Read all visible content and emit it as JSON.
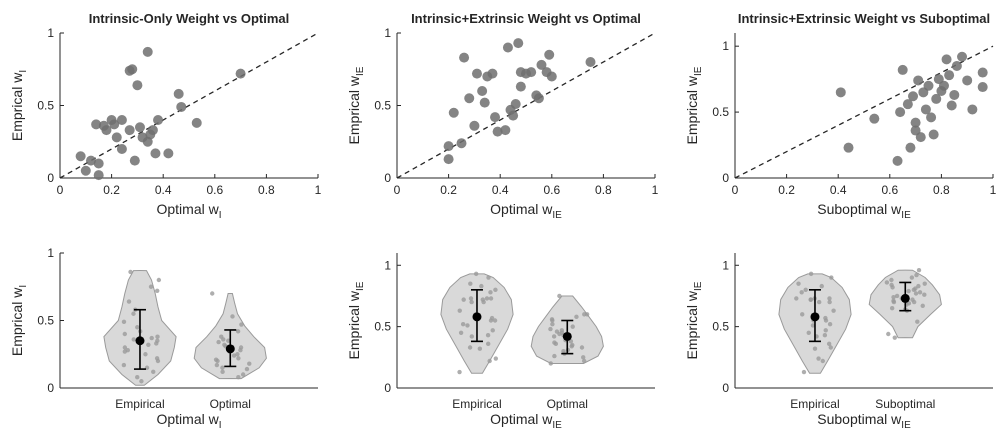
{
  "colors": {
    "point": "#6f6f6f",
    "violin_fill": "#d9d9d9",
    "violin_stroke": "#9a9a9a",
    "jitter": "#9a9a9a",
    "mean": "#000000",
    "axis": "#262626",
    "diagonal": "#262626"
  },
  "chart_data": [
    {
      "type": "scatter",
      "title": "Intrinsic-Only Weight vs Optimal",
      "xlabel": "Optimal w",
      "xlabel_sub": "I",
      "ylabel": "Emprical w",
      "ylabel_sub": "I",
      "xlim": [
        0,
        1
      ],
      "ylim": [
        0,
        1
      ],
      "xticks": [
        0,
        0.2,
        0.4,
        0.6,
        0.8,
        1
      ],
      "xticklabels": [
        "0",
        "0.2",
        "0.4",
        "0.6",
        "0.8",
        "1"
      ],
      "yticks": [
        0,
        0.5,
        1
      ],
      "yticklabels": [
        "0",
        "0.5",
        "1"
      ],
      "diagonal": true,
      "points": [
        [
          0.08,
          0.15
        ],
        [
          0.1,
          0.05
        ],
        [
          0.12,
          0.12
        ],
        [
          0.14,
          0.37
        ],
        [
          0.15,
          0.02
        ],
        [
          0.15,
          0.1
        ],
        [
          0.17,
          0.36
        ],
        [
          0.18,
          0.33
        ],
        [
          0.2,
          0.4
        ],
        [
          0.21,
          0.37
        ],
        [
          0.22,
          0.28
        ],
        [
          0.24,
          0.2
        ],
        [
          0.24,
          0.4
        ],
        [
          0.27,
          0.33
        ],
        [
          0.27,
          0.74
        ],
        [
          0.28,
          0.75
        ],
        [
          0.29,
          0.12
        ],
        [
          0.3,
          0.64
        ],
        [
          0.31,
          0.35
        ],
        [
          0.32,
          0.28
        ],
        [
          0.34,
          0.25
        ],
        [
          0.34,
          0.87
        ],
        [
          0.35,
          0.3
        ],
        [
          0.36,
          0.33
        ],
        [
          0.37,
          0.17
        ],
        [
          0.38,
          0.4
        ],
        [
          0.42,
          0.17
        ],
        [
          0.46,
          0.58
        ],
        [
          0.47,
          0.49
        ],
        [
          0.53,
          0.38
        ],
        [
          0.7,
          0.72
        ]
      ]
    },
    {
      "type": "scatter",
      "title": "Intrinsic+Extrinsic Weight vs Optimal",
      "xlabel": "Optimal w",
      "xlabel_sub": "IE",
      "ylabel": "Emprical w",
      "ylabel_sub": "IE",
      "xlim": [
        0,
        1
      ],
      "ylim": [
        0,
        1
      ],
      "xticks": [
        0,
        0.2,
        0.4,
        0.6,
        0.8,
        1
      ],
      "xticklabels": [
        "0",
        "0.2",
        "0.4",
        "0.6",
        "0.8",
        "1"
      ],
      "yticks": [
        0,
        0.5,
        1
      ],
      "yticklabels": [
        "0",
        "0.5",
        "1"
      ],
      "diagonal": true,
      "points": [
        [
          0.2,
          0.13
        ],
        [
          0.2,
          0.22
        ],
        [
          0.22,
          0.45
        ],
        [
          0.25,
          0.24
        ],
        [
          0.26,
          0.83
        ],
        [
          0.28,
          0.55
        ],
        [
          0.3,
          0.36
        ],
        [
          0.31,
          0.72
        ],
        [
          0.33,
          0.6
        ],
        [
          0.34,
          0.52
        ],
        [
          0.35,
          0.7
        ],
        [
          0.37,
          0.72
        ],
        [
          0.38,
          0.42
        ],
        [
          0.39,
          0.32
        ],
        [
          0.42,
          0.33
        ],
        [
          0.43,
          0.9
        ],
        [
          0.44,
          0.47
        ],
        [
          0.45,
          0.43
        ],
        [
          0.46,
          0.51
        ],
        [
          0.47,
          0.93
        ],
        [
          0.48,
          0.63
        ],
        [
          0.48,
          0.73
        ],
        [
          0.5,
          0.72
        ],
        [
          0.52,
          0.73
        ],
        [
          0.54,
          0.57
        ],
        [
          0.55,
          0.55
        ],
        [
          0.56,
          0.78
        ],
        [
          0.58,
          0.73
        ],
        [
          0.59,
          0.85
        ],
        [
          0.6,
          0.7
        ],
        [
          0.75,
          0.8
        ]
      ]
    },
    {
      "type": "scatter",
      "title": "Intrinsic+Extrinsic Weight vs Suboptimal",
      "xlabel": "Suboptimal w",
      "xlabel_sub": "IE",
      "ylabel": "Emprical w",
      "ylabel_sub": "IE",
      "xlim": [
        0,
        1
      ],
      "ylim": [
        0,
        1.1
      ],
      "xticks": [
        0,
        0.2,
        0.4,
        0.6,
        0.8,
        1
      ],
      "xticklabels": [
        "0",
        "0.2",
        "0.4",
        "0.6",
        "0.8",
        "1"
      ],
      "yticks": [
        0,
        0.5,
        1
      ],
      "yticklabels": [
        "0",
        "0.5",
        "1"
      ],
      "diagonal": true,
      "points": [
        [
          0.41,
          0.65
        ],
        [
          0.44,
          0.23
        ],
        [
          0.54,
          0.45
        ],
        [
          0.63,
          0.13
        ],
        [
          0.64,
          0.5
        ],
        [
          0.65,
          0.82
        ],
        [
          0.67,
          0.56
        ],
        [
          0.68,
          0.23
        ],
        [
          0.69,
          0.62
        ],
        [
          0.7,
          0.36
        ],
        [
          0.7,
          0.42
        ],
        [
          0.71,
          0.74
        ],
        [
          0.72,
          0.31
        ],
        [
          0.73,
          0.65
        ],
        [
          0.74,
          0.52
        ],
        [
          0.75,
          0.7
        ],
        [
          0.76,
          0.46
        ],
        [
          0.77,
          0.33
        ],
        [
          0.78,
          0.6
        ],
        [
          0.79,
          0.75
        ],
        [
          0.8,
          0.66
        ],
        [
          0.81,
          0.7
        ],
        [
          0.82,
          0.9
        ],
        [
          0.83,
          0.78
        ],
        [
          0.84,
          0.55
        ],
        [
          0.85,
          0.63
        ],
        [
          0.86,
          0.85
        ],
        [
          0.88,
          0.92
        ],
        [
          0.9,
          0.74
        ],
        [
          0.92,
          0.52
        ],
        [
          0.96,
          0.8
        ],
        [
          0.96,
          0.69
        ]
      ]
    },
    {
      "type": "violin",
      "xlabel": "Optimal w",
      "xlabel_sub": "I",
      "ylabel": "Emprical w",
      "ylabel_sub": "I",
      "ylim": [
        0,
        1
      ],
      "yticks": [
        0,
        0.5,
        1
      ],
      "yticklabels": [
        "0",
        "0.5",
        "1"
      ],
      "categories": [
        "Empirical",
        "Optimal"
      ],
      "groups": [
        {
          "name": "Empirical",
          "mean": 0.35,
          "low": 0.14,
          "high": 0.58,
          "min": 0.02,
          "max": 0.87,
          "profile": [
            [
              0.02,
              0.12
            ],
            [
              0.1,
              0.5
            ],
            [
              0.2,
              0.85
            ],
            [
              0.3,
              0.95
            ],
            [
              0.38,
              1.0
            ],
            [
              0.5,
              0.6
            ],
            [
              0.6,
              0.5
            ],
            [
              0.7,
              0.42
            ],
            [
              0.8,
              0.32
            ],
            [
              0.87,
              0.18
            ]
          ],
          "values": [
            0.05,
            0.08,
            0.12,
            0.15,
            0.17,
            0.2,
            0.22,
            0.25,
            0.27,
            0.28,
            0.3,
            0.32,
            0.33,
            0.35,
            0.36,
            0.37,
            0.38,
            0.4,
            0.42,
            0.45,
            0.49,
            0.55,
            0.58,
            0.64,
            0.72,
            0.75,
            0.8,
            0.86
          ]
        },
        {
          "name": "Optimal",
          "mean": 0.29,
          "low": 0.16,
          "high": 0.43,
          "min": 0.07,
          "max": 0.7,
          "profile": [
            [
              0.07,
              0.3
            ],
            [
              0.15,
              0.8
            ],
            [
              0.22,
              1.0
            ],
            [
              0.3,
              0.95
            ],
            [
              0.38,
              0.65
            ],
            [
              0.46,
              0.4
            ],
            [
              0.55,
              0.2
            ],
            [
              0.63,
              0.12
            ],
            [
              0.7,
              0.06
            ]
          ],
          "values": [
            0.08,
            0.1,
            0.12,
            0.14,
            0.15,
            0.17,
            0.18,
            0.2,
            0.21,
            0.22,
            0.24,
            0.25,
            0.27,
            0.28,
            0.3,
            0.31,
            0.32,
            0.34,
            0.35,
            0.36,
            0.38,
            0.42,
            0.47,
            0.53,
            0.7
          ]
        }
      ]
    },
    {
      "type": "violin",
      "xlabel": "Optimal w",
      "xlabel_sub": "IE",
      "ylabel": "Emprical w",
      "ylabel_sub": "IE",
      "ylim": [
        0,
        1.1
      ],
      "yticks": [
        0,
        0.5,
        1
      ],
      "yticklabels": [
        "0",
        "0.5",
        "1"
      ],
      "categories": [
        "Empirical",
        "Optimal"
      ],
      "groups": [
        {
          "name": "Empirical",
          "mean": 0.58,
          "low": 0.38,
          "high": 0.8,
          "min": 0.12,
          "max": 0.93,
          "profile": [
            [
              0.12,
              0.15
            ],
            [
              0.22,
              0.35
            ],
            [
              0.35,
              0.6
            ],
            [
              0.48,
              0.85
            ],
            [
              0.6,
              1.0
            ],
            [
              0.72,
              0.95
            ],
            [
              0.82,
              0.75
            ],
            [
              0.9,
              0.45
            ],
            [
              0.93,
              0.2
            ]
          ],
          "values": [
            0.13,
            0.22,
            0.24,
            0.32,
            0.33,
            0.36,
            0.42,
            0.43,
            0.45,
            0.47,
            0.51,
            0.52,
            0.55,
            0.55,
            0.57,
            0.6,
            0.63,
            0.7,
            0.7,
            0.72,
            0.72,
            0.73,
            0.73,
            0.73,
            0.78,
            0.8,
            0.83,
            0.85,
            0.9,
            0.93
          ]
        },
        {
          "name": "Optimal",
          "mean": 0.42,
          "low": 0.28,
          "high": 0.55,
          "min": 0.2,
          "max": 0.75,
          "profile": [
            [
              0.2,
              0.45
            ],
            [
              0.26,
              0.85
            ],
            [
              0.34,
              1.0
            ],
            [
              0.42,
              0.95
            ],
            [
              0.5,
              0.8
            ],
            [
              0.58,
              0.6
            ],
            [
              0.66,
              0.4
            ],
            [
              0.75,
              0.15
            ]
          ],
          "values": [
            0.2,
            0.22,
            0.25,
            0.26,
            0.28,
            0.3,
            0.31,
            0.33,
            0.34,
            0.35,
            0.36,
            0.37,
            0.38,
            0.39,
            0.42,
            0.43,
            0.44,
            0.45,
            0.46,
            0.47,
            0.48,
            0.5,
            0.52,
            0.55,
            0.56,
            0.58,
            0.6,
            0.6,
            0.75
          ]
        }
      ]
    },
    {
      "type": "violin",
      "xlabel": "Suboptimal w",
      "xlabel_sub": "IE",
      "ylabel": "Emprical w",
      "ylabel_sub": "IE",
      "ylim": [
        0,
        1.1
      ],
      "yticks": [
        0,
        0.5,
        1
      ],
      "yticklabels": [
        "0",
        "0.5",
        "1"
      ],
      "categories": [
        "Empirical",
        "Suboptimal"
      ],
      "groups": [
        {
          "name": "Empirical",
          "mean": 0.58,
          "low": 0.38,
          "high": 0.8,
          "min": 0.12,
          "max": 0.93,
          "profile": [
            [
              0.12,
              0.15
            ],
            [
              0.22,
              0.35
            ],
            [
              0.35,
              0.6
            ],
            [
              0.48,
              0.85
            ],
            [
              0.6,
              1.0
            ],
            [
              0.72,
              0.95
            ],
            [
              0.82,
              0.75
            ],
            [
              0.9,
              0.45
            ],
            [
              0.93,
              0.2
            ]
          ],
          "values": [
            0.13,
            0.22,
            0.24,
            0.32,
            0.33,
            0.36,
            0.42,
            0.43,
            0.45,
            0.47,
            0.51,
            0.52,
            0.55,
            0.55,
            0.57,
            0.6,
            0.63,
            0.7,
            0.7,
            0.72,
            0.72,
            0.73,
            0.73,
            0.73,
            0.78,
            0.8,
            0.83,
            0.85,
            0.9,
            0.93
          ]
        },
        {
          "name": "Suboptimal",
          "mean": 0.73,
          "low": 0.63,
          "high": 0.86,
          "min": 0.41,
          "max": 0.96,
          "profile": [
            [
              0.41,
              0.2
            ],
            [
              0.5,
              0.35
            ],
            [
              0.6,
              0.7
            ],
            [
              0.68,
              1.0
            ],
            [
              0.76,
              0.95
            ],
            [
              0.84,
              0.75
            ],
            [
              0.9,
              0.55
            ],
            [
              0.96,
              0.2
            ]
          ],
          "values": [
            0.41,
            0.44,
            0.54,
            0.63,
            0.64,
            0.65,
            0.67,
            0.68,
            0.69,
            0.7,
            0.7,
            0.71,
            0.72,
            0.73,
            0.74,
            0.75,
            0.76,
            0.77,
            0.78,
            0.79,
            0.8,
            0.81,
            0.82,
            0.83,
            0.84,
            0.85,
            0.86,
            0.88,
            0.9,
            0.92,
            0.96
          ]
        }
      ]
    }
  ]
}
